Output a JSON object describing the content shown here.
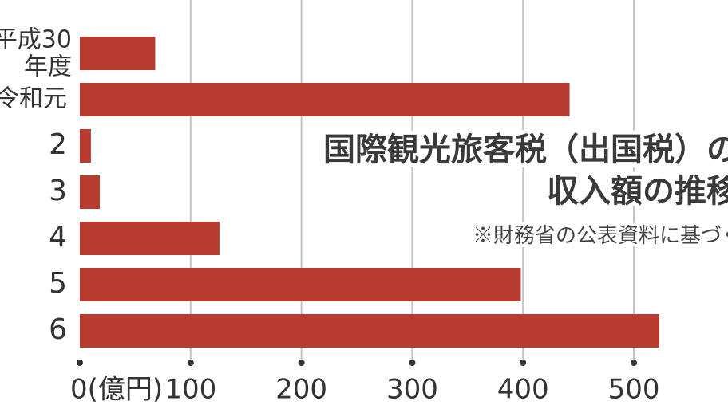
{
  "chart_data": {
    "type": "bar",
    "orientation": "horizontal",
    "title": [
      "国際観光旅客税（出国税）の",
      "収入額の推移"
    ],
    "subtitle": "※財務省の公表資料に基づく",
    "categories": [
      [
        "平成30",
        "年度"
      ],
      "令和元",
      "2",
      "3",
      "4",
      "5",
      "6"
    ],
    "values": [
      68,
      442,
      10,
      18,
      126,
      398,
      523
    ],
    "color": "#b83b30",
    "xlim": [
      0,
      585
    ],
    "xticks": [
      {
        "value": 0,
        "label": "0(億円)"
      },
      100,
      200,
      300,
      400,
      500
    ],
    "grid": true
  }
}
